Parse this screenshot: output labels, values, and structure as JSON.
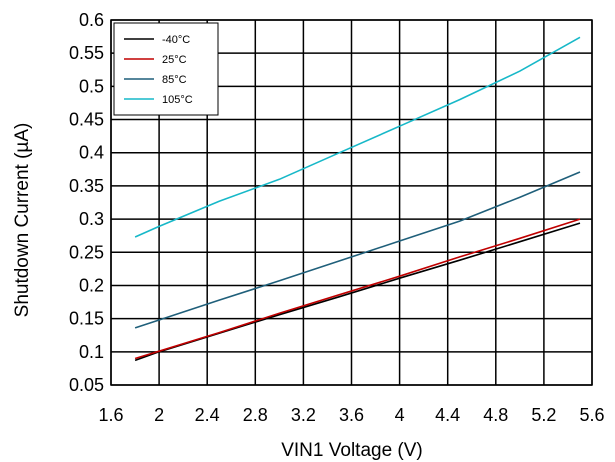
{
  "chart_data": {
    "type": "line",
    "xlabel": "VIN1 Voltage (V)",
    "ylabel": "Shutdown Current (µA)",
    "xlim": [
      1.6,
      5.6
    ],
    "ylim": [
      0.05,
      0.6
    ],
    "xticks": [
      1.6,
      2,
      2.4,
      2.8,
      3.2,
      3.6,
      4,
      4.4,
      4.8,
      5.2,
      5.6
    ],
    "xtick_labels": [
      "1.6",
      "2",
      "2.4",
      "2.8",
      "3.2",
      "3.6",
      "4",
      "4.4",
      "4.8",
      "5.2",
      "5.6"
    ],
    "yticks": [
      0.05,
      0.1,
      0.15,
      0.2,
      0.25,
      0.3,
      0.35,
      0.4,
      0.45,
      0.5,
      0.55,
      0.6
    ],
    "ytick_labels": [
      "0.05",
      "0.1",
      "0.15",
      "0.2",
      "0.25",
      "0.3",
      "0.35",
      "0.4",
      "0.45",
      "0.5",
      "0.55",
      "0.6"
    ],
    "grid": true,
    "legend_position": "top-left",
    "series": [
      {
        "name": "-40°C",
        "color": "#000000",
        "x": [
          1.8,
          2.0,
          2.5,
          3.0,
          3.5,
          4.0,
          4.5,
          5.0,
          5.5
        ],
        "y": [
          0.087,
          0.1,
          0.128,
          0.156,
          0.183,
          0.211,
          0.238,
          0.266,
          0.294
        ]
      },
      {
        "name": "25°C",
        "color": "#c00000",
        "x": [
          1.8,
          2.0,
          2.5,
          3.0,
          3.5,
          4.0,
          4.5,
          5.0,
          5.5
        ],
        "y": [
          0.09,
          0.101,
          0.129,
          0.158,
          0.186,
          0.214,
          0.243,
          0.271,
          0.3
        ]
      },
      {
        "name": "85°C",
        "color": "#1f5f7a",
        "x": [
          1.8,
          2.0,
          2.5,
          3.0,
          3.5,
          4.0,
          4.5,
          5.0,
          5.5
        ],
        "y": [
          0.136,
          0.148,
          0.178,
          0.207,
          0.237,
          0.267,
          0.297,
          0.333,
          0.371
        ]
      },
      {
        "name": "105°C",
        "color": "#17b8c8",
        "x": [
          1.8,
          2.0,
          2.5,
          3.0,
          3.5,
          4.0,
          4.5,
          5.0,
          5.5
        ],
        "y": [
          0.273,
          0.289,
          0.327,
          0.36,
          0.4,
          0.44,
          0.48,
          0.523,
          0.574
        ]
      }
    ]
  }
}
